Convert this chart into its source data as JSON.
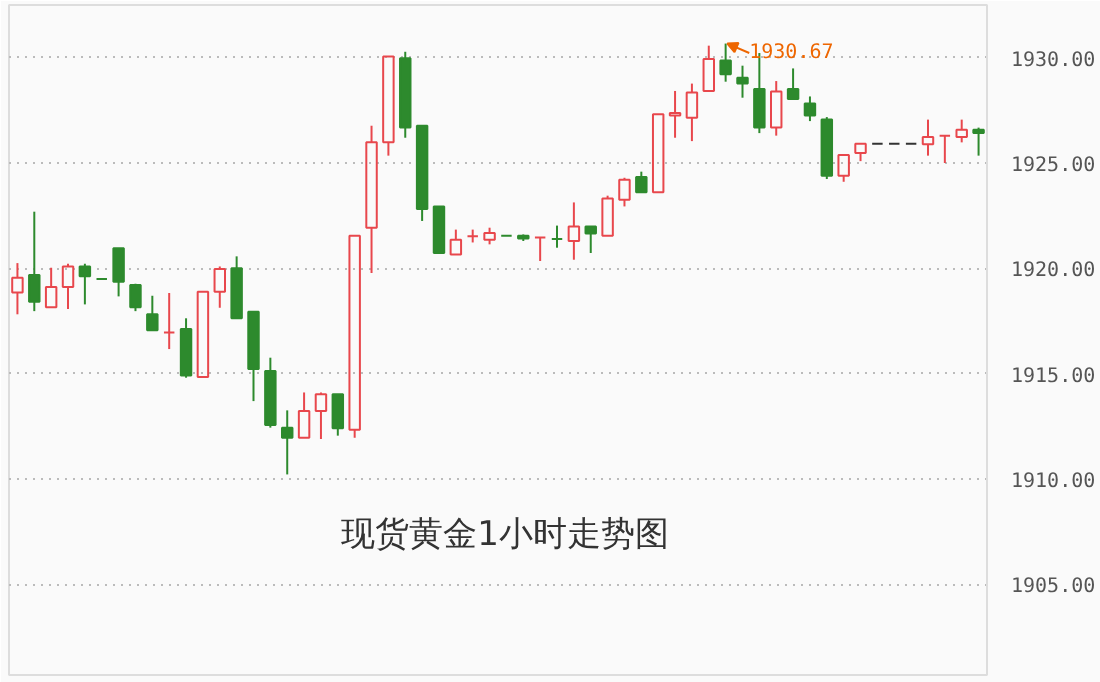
{
  "chart_data": {
    "type": "candlestick",
    "title": "现货黄金1小时走势图",
    "categories": [
      null,
      null,
      null,
      null,
      null,
      null,
      null,
      null,
      null,
      null,
      null,
      null,
      null,
      null,
      null,
      null,
      null,
      null,
      null,
      null,
      null,
      null,
      null,
      null,
      null,
      null,
      null,
      null,
      null,
      null,
      null,
      null,
      null,
      null,
      null,
      null,
      null,
      null,
      null,
      null,
      null,
      null,
      null,
      null,
      null,
      null,
      null,
      null,
      null,
      null,
      null,
      null,
      null,
      null,
      null,
      null,
      null,
      null
    ],
    "ohlc": [
      [
        1918.86,
        1920.25,
        1917.82,
        1919.56
      ],
      [
        1919.68,
        1922.69,
        1917.97,
        1918.42
      ],
      [
        1918.16,
        1920.03,
        1918.16,
        1919.11
      ],
      [
        1919.11,
        1920.22,
        1918.07,
        1920.09
      ],
      [
        1920.09,
        1920.22,
        1918.29,
        1919.62
      ],
      [
        1919.49,
        1919.49,
        1919.49,
        1919.49
      ],
      [
        1920.95,
        1920.95,
        1918.67,
        1919.37
      ],
      [
        1919.21,
        1919.27,
        1917.97,
        1918.16
      ],
      [
        1917.82,
        1918.7,
        1917.06,
        1917.06
      ],
      [
        1916.96,
        1918.83,
        1916.17,
        1916.96
      ],
      [
        1917.12,
        1917.63,
        1914.81,
        1914.91
      ],
      [
        1914.84,
        1918.89,
        1914.84,
        1918.89
      ],
      [
        1918.89,
        1920.09,
        1918.13,
        1919.97
      ],
      [
        1920.0,
        1920.57,
        1917.63,
        1917.63
      ],
      [
        1917.94,
        1917.94,
        1913.7,
        1915.22
      ],
      [
        1915.13,
        1915.76,
        1912.44,
        1912.56
      ],
      [
        1912.44,
        1913.26,
        1910.22,
        1911.96
      ],
      [
        1911.96,
        1914.11,
        1911.96,
        1913.23
      ],
      [
        1913.23,
        1914.11,
        1911.9,
        1914.02
      ],
      [
        1914.02,
        1914.02,
        1912.06,
        1912.41
      ],
      [
        1912.34,
        1921.55,
        1911.96,
        1921.55
      ],
      [
        1921.93,
        1926.77,
        1919.78,
        1925.98
      ],
      [
        1925.98,
        1930.06,
        1925.35,
        1930.06
      ],
      [
        1929.97,
        1930.28,
        1926.2,
        1926.68
      ],
      [
        1926.77,
        1926.77,
        1922.25,
        1922.82
      ],
      [
        1922.94,
        1922.94,
        1920.73,
        1920.73
      ],
      [
        1920.66,
        1921.84,
        1920.66,
        1921.36
      ],
      [
        1921.52,
        1921.84,
        1921.23,
        1921.52
      ],
      [
        1921.36,
        1921.93,
        1921.14,
        1921.68
      ],
      [
        1921.55,
        1921.55,
        1921.55,
        1921.55
      ],
      [
        1921.55,
        1921.61,
        1921.3,
        1921.42
      ],
      [
        1921.46,
        1921.46,
        1920.35,
        1921.46
      ],
      [
        1921.39,
        1922.03,
        1920.98,
        1921.39
      ],
      [
        1921.3,
        1923.13,
        1920.41,
        1921.99
      ],
      [
        1921.99,
        1921.99,
        1920.73,
        1921.65
      ],
      [
        1921.55,
        1923.45,
        1921.55,
        1923.32
      ],
      [
        1923.26,
        1924.3,
        1922.94,
        1924.21
      ],
      [
        1924.34,
        1924.59,
        1923.61,
        1923.61
      ],
      [
        1923.61,
        1927.31,
        1923.61,
        1927.31
      ],
      [
        1927.25,
        1928.42,
        1926.2,
        1927.37
      ],
      [
        1927.15,
        1928.77,
        1926.04,
        1928.35
      ],
      [
        1928.42,
        1930.57,
        1928.42,
        1929.94
      ],
      [
        1929.87,
        1930.67,
        1928.86,
        1929.21
      ],
      [
        1929.05,
        1929.62,
        1928.1,
        1928.77
      ],
      [
        1928.51,
        1930.22,
        1926.42,
        1926.68
      ],
      [
        1926.68,
        1928.89,
        1926.3,
        1928.39
      ],
      [
        1928.51,
        1929.49,
        1928.04,
        1928.04
      ],
      [
        1927.82,
        1928.16,
        1926.99,
        1927.25
      ],
      [
        1927.06,
        1927.18,
        1924.24,
        1924.4
      ],
      [
        1924.4,
        1925.38,
        1924.11,
        1925.38
      ],
      [
        1925.47,
        1925.92,
        1925.09,
        1925.92
      ],
      [
        1925.92,
        1925.92,
        1925.92,
        1925.92
      ],
      [
        1925.92,
        1925.92,
        1925.92,
        1925.92
      ],
      [
        1925.92,
        1925.92,
        1925.92,
        1925.92
      ],
      [
        1925.89,
        1927.06,
        1925.35,
        1926.23
      ],
      [
        1926.3,
        1926.3,
        1925.0,
        1926.3
      ],
      [
        1926.23,
        1927.06,
        1925.98,
        1926.58
      ],
      [
        1926.58,
        1926.68,
        1925.35,
        1926.42
      ]
    ],
    "colors": [
      "#e8474c",
      "#2d8a2d",
      "#e8474c",
      "#e8474c",
      "#2d8a2d",
      "#2d8a2d",
      "#2d8a2d",
      "#2d8a2d",
      "#2d8a2d",
      "#e8474c",
      "#2d8a2d",
      "#e8474c",
      "#e8474c",
      "#2d8a2d",
      "#2d8a2d",
      "#2d8a2d",
      "#2d8a2d",
      "#e8474c",
      "#e8474c",
      "#2d8a2d",
      "#e8474c",
      "#e8474c",
      "#e8474c",
      "#2d8a2d",
      "#2d8a2d",
      "#2d8a2d",
      "#e8474c",
      "#e8474c",
      "#e8474c",
      "#2d8a2d",
      "#2d8a2d",
      "#e8474c",
      "#2d8a2d",
      "#e8474c",
      "#2d8a2d",
      "#e8474c",
      "#e8474c",
      "#2d8a2d",
      "#e8474c",
      "#e8474c",
      "#e8474c",
      "#e8474c",
      "#2d8a2d",
      "#2d8a2d",
      "#2d8a2d",
      "#e8474c",
      "#2d8a2d",
      "#2d8a2d",
      "#2d8a2d",
      "#e8474c",
      "#e8474c",
      "#333333",
      "#333333",
      "#333333",
      "#e8474c",
      "#e8474c",
      "#e8474c",
      "#2d8a2d"
    ],
    "ylim": [
      1900.7,
      1932.5
    ],
    "yticks": [
      {
        "value": 1905,
        "label": "1905.00"
      },
      {
        "value": 1910,
        "label": "1910.00"
      },
      {
        "value": 1915,
        "label": "1915.00"
      },
      {
        "value": 1920,
        "label": "1920.00"
      },
      {
        "value": 1925,
        "label": "1925.00"
      },
      {
        "value": 1930,
        "label": "1930.00"
      }
    ],
    "grid": "y",
    "annotations": [
      "1930.67"
    ]
  }
}
